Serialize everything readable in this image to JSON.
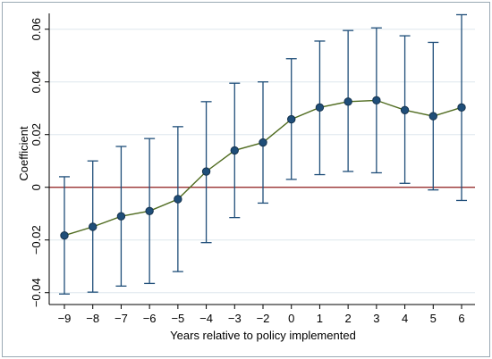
{
  "chart_data": {
    "type": "scatter",
    "subtype": "event-study coefficient plot with 95% confidence intervals",
    "title": "",
    "xlabel": "Years relative to policy implemented",
    "ylabel": "Coefficient",
    "x_categories": [
      "−9",
      "−8",
      "−7",
      "−6",
      "−5",
      "−4",
      "−3",
      "−2",
      "0",
      "1",
      "2",
      "3",
      "4",
      "5",
      "6"
    ],
    "series": [
      {
        "values": [
          -0.0183,
          -0.015,
          -0.011,
          -0.009,
          -0.0045,
          0.006,
          0.014,
          0.017,
          0.0258,
          0.0303,
          0.0325,
          0.033,
          0.0293,
          0.027,
          0.0303
        ],
        "ci_lower": [
          -0.0405,
          -0.0398,
          -0.0375,
          -0.0365,
          -0.032,
          -0.021,
          -0.0115,
          -0.006,
          0.003,
          0.0048,
          0.006,
          0.0055,
          0.0015,
          -0.001,
          -0.005
        ],
        "ci_upper": [
          0.004,
          0.01,
          0.0155,
          0.0185,
          0.023,
          0.0325,
          0.0395,
          0.04,
          0.0488,
          0.0555,
          0.0595,
          0.0605,
          0.0575,
          0.055,
          0.0655
        ]
      }
    ],
    "y_ticks": [
      -0.04,
      -0.02,
      0,
      0.02,
      0.04,
      0.06
    ],
    "y_tick_labels": [
      "−0.04",
      "−0.02",
      "0",
      "0.02",
      "0.04",
      "0.06"
    ],
    "ylim": [
      -0.0445,
      0.066
    ],
    "reference_line_y": 0,
    "grid": "horizontal",
    "legend": "none",
    "colors": {
      "marker_fill": "#1f4e79",
      "marker_edge": "#15324d",
      "connecting_line": "#4f6b1f",
      "ci_bars": "#1f4e79",
      "reference_line": "#8b1a1a",
      "grid": "#dde7ee",
      "axes": "#000000"
    }
  }
}
